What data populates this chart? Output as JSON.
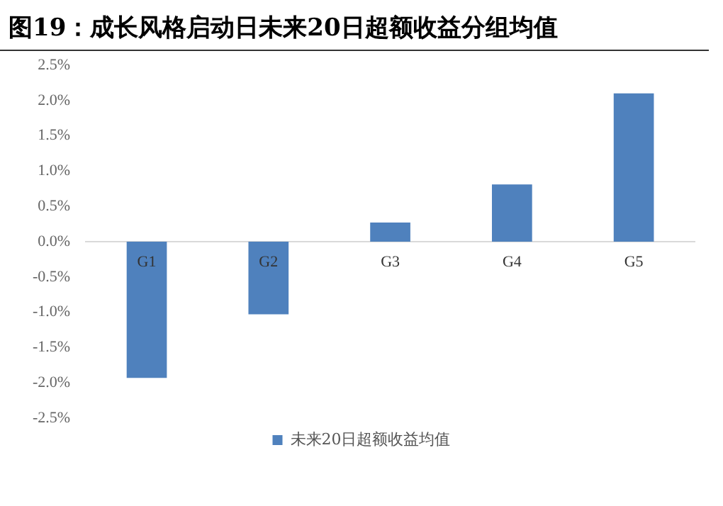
{
  "chart_data": {
    "type": "bar",
    "title": "图19：成长风格启动日未来20日超额收益分组均值",
    "categories": [
      "G1",
      "G2",
      "G3",
      "G4",
      "G5"
    ],
    "series": [
      {
        "name": "未来20日超额收益均值",
        "color": "#4f81bd",
        "values": [
          -1.93,
          -1.03,
          0.27,
          0.81,
          2.1
        ]
      }
    ],
    "ylim": [
      -2.5,
      2.5
    ],
    "yticks": [
      {
        "value": -2.5,
        "label": "-2.5%"
      },
      {
        "value": -2,
        "label": "-2.0%"
      },
      {
        "value": -1.5,
        "label": "-1.5%"
      },
      {
        "value": -1,
        "label": "-1.0%"
      },
      {
        "value": -0.5,
        "label": "-0.5%"
      },
      {
        "value": 0,
        "label": "0.0%"
      },
      {
        "value": 0.5,
        "label": "0.5%"
      },
      {
        "value": 1,
        "label": "1.0%"
      },
      {
        "value": 1.5,
        "label": "1.5%"
      },
      {
        "value": 2,
        "label": "2.0%"
      },
      {
        "value": 2.5,
        "label": "2.5%"
      }
    ],
    "grid": false,
    "legend": "bottom"
  }
}
